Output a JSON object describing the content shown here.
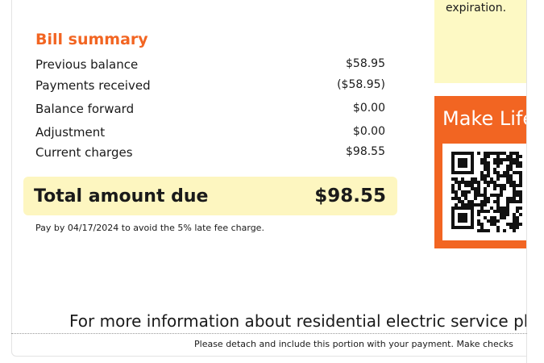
{
  "summary": {
    "title": "Bill summary",
    "rows": [
      {
        "label": "Previous balance",
        "value": "$58.95"
      },
      {
        "label": "Payments received",
        "value": "($58.95)"
      },
      {
        "label": "Balance forward",
        "value": "$0.00"
      },
      {
        "label": "Adjustment",
        "value": "$0.00"
      },
      {
        "label": "Current charges",
        "value": "$98.55"
      }
    ],
    "total_label": "Total amount due",
    "total_value": "$98.55",
    "note": "Pay by 04/17/2024 to avoid the 5% late fee charge."
  },
  "sidebar": {
    "yellow_text": "expiration.",
    "promo_title": "Make Life",
    "qr_icon": "qr-code-icon"
  },
  "footer": {
    "info": "For more information about residential electric service ple",
    "detach": "Please detach and include this portion with your payment. Make checks"
  },
  "colors": {
    "accent": "#f26522",
    "highlight": "#fdf6c0"
  }
}
